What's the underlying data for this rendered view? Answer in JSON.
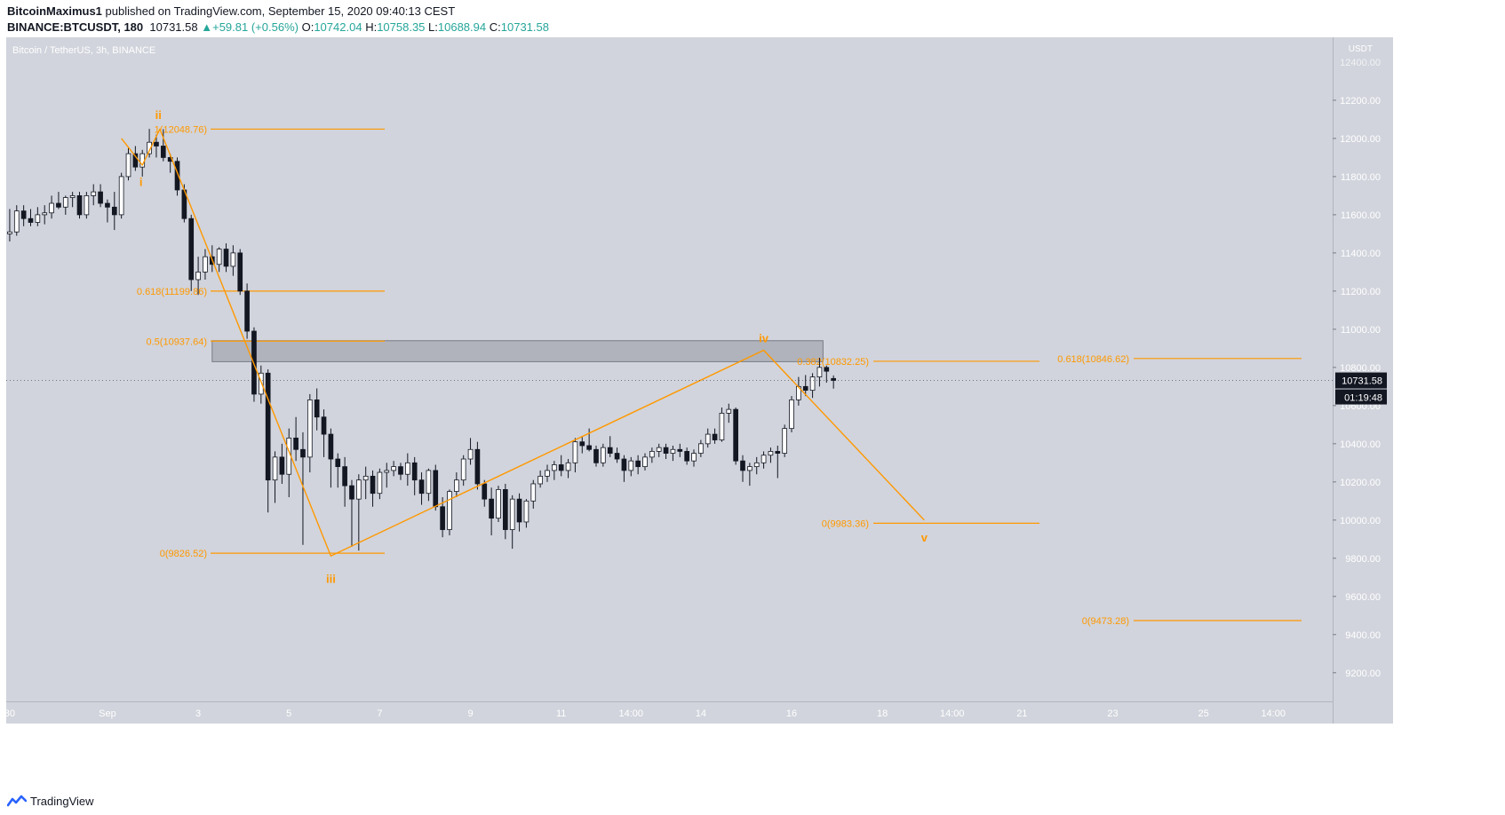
{
  "header": {
    "author": "BitcoinMaximus1",
    "published_text": " published on TradingView.com, September 15, 2020 09:40:13 CEST",
    "symbol_line": "BINANCE:BTCUSDT, 180",
    "last": "10731.58",
    "change": "+59.81 (+0.56%)",
    "o_label": "O:",
    "o": "10742.04",
    "h_label": "H:",
    "h": "10758.35",
    "l_label": "L:",
    "l": "10688.94",
    "c_label": "C:",
    "c": "10731.58"
  },
  "footer": {
    "brand": "TradingView",
    "icon": "tradingview-logo-icon"
  },
  "colors": {
    "chart_bg": "#d1d4dc",
    "orange": "#ff9800",
    "up": "#ffffff",
    "down": "#131722",
    "zone": "#9598a1",
    "price_tag": "#131722"
  },
  "chart_data": {
    "type": "candlestick",
    "title": "Bitcoin / TetherUS, 3h, BINANCE",
    "currency": "USDT",
    "ylim": [
      9050,
      12530
    ],
    "y_ticks": [
      9200,
      9400,
      9600,
      9800,
      10000,
      10200,
      10400,
      10600,
      10800,
      11000,
      11200,
      11400,
      11600,
      11800,
      12000,
      12200
    ],
    "y_tick_labels": [
      "9200.00",
      "9400.00",
      "9600.00",
      "9800.00",
      "10000.00",
      "10200.00",
      "10400.00",
      "10600.00",
      "10800.00",
      "11000.00",
      "11200.00",
      "11400.00",
      "11600.00",
      "11800.00",
      "12000.00",
      "12200.00"
    ],
    "top_partial_label": "12400.00",
    "bar_range": [
      0,
      190
    ],
    "x_ticks": [
      {
        "bar": 0.5,
        "label": "30"
      },
      {
        "bar": 14.5,
        "label": "Sep"
      },
      {
        "bar": 27.5,
        "label": "3"
      },
      {
        "bar": 40.5,
        "label": "5"
      },
      {
        "bar": 53.5,
        "label": "7"
      },
      {
        "bar": 66.5,
        "label": "9"
      },
      {
        "bar": 79.5,
        "label": "11"
      },
      {
        "bar": 89.5,
        "label": "14:00"
      },
      {
        "bar": 99.5,
        "label": "14"
      },
      {
        "bar": 112.5,
        "label": "16"
      },
      {
        "bar": 125.5,
        "label": "18"
      },
      {
        "bar": 135.5,
        "label": "14:00"
      },
      {
        "bar": 145.5,
        "label": "21"
      },
      {
        "bar": 158.5,
        "label": "23"
      },
      {
        "bar": 171.5,
        "label": "25"
      },
      {
        "bar": 181.5,
        "label": "14:00"
      }
    ],
    "last_price": "10731.58",
    "countdown": "01:19:48",
    "candles": [
      [
        11500,
        11630,
        11460,
        11510
      ],
      [
        11510,
        11650,
        11490,
        11620
      ],
      [
        11620,
        11650,
        11540,
        11580
      ],
      [
        11580,
        11630,
        11540,
        11560
      ],
      [
        11560,
        11640,
        11540,
        11600
      ],
      [
        11600,
        11650,
        11550,
        11610
      ],
      [
        11610,
        11700,
        11580,
        11660
      ],
      [
        11660,
        11720,
        11630,
        11640
      ],
      [
        11640,
        11700,
        11600,
        11690
      ],
      [
        11690,
        11720,
        11640,
        11700
      ],
      [
        11700,
        11720,
        11580,
        11600
      ],
      [
        11600,
        11720,
        11580,
        11700
      ],
      [
        11700,
        11760,
        11650,
        11720
      ],
      [
        11720,
        11760,
        11640,
        11660
      ],
      [
        11660,
        11680,
        11560,
        11640
      ],
      [
        11640,
        11720,
        11520,
        11600
      ],
      [
        11600,
        11820,
        11580,
        11800
      ],
      [
        11800,
        11950,
        11780,
        11920
      ],
      [
        11920,
        11960,
        11830,
        11850
      ],
      [
        11850,
        11940,
        11800,
        11920
      ],
      [
        11920,
        12050,
        11900,
        11980
      ],
      [
        11980,
        12020,
        11900,
        11960
      ],
      [
        11960,
        12049,
        11880,
        11900
      ],
      [
        11900,
        11920,
        11820,
        11880
      ],
      [
        11880,
        11900,
        11700,
        11730
      ],
      [
        11730,
        11760,
        11560,
        11580
      ],
      [
        11580,
        11600,
        11200,
        11260
      ],
      [
        11260,
        11380,
        11180,
        11300
      ],
      [
        11300,
        11420,
        11260,
        11380
      ],
      [
        11380,
        11440,
        11300,
        11340
      ],
      [
        11340,
        11430,
        11300,
        11420
      ],
      [
        11420,
        11450,
        11300,
        11330
      ],
      [
        11330,
        11440,
        11280,
        11400
      ],
      [
        11400,
        11420,
        11180,
        11200
      ],
      [
        11200,
        11240,
        10950,
        10990
      ],
      [
        10990,
        11010,
        10620,
        10660
      ],
      [
        10660,
        10810,
        10610,
        10770
      ],
      [
        10770,
        10790,
        10040,
        10210
      ],
      [
        10210,
        10360,
        10090,
        10330
      ],
      [
        10330,
        10400,
        10190,
        10240
      ],
      [
        10240,
        10480,
        10120,
        10430
      ],
      [
        10430,
        10540,
        10310,
        10370
      ],
      [
        10370,
        10460,
        9870,
        10330
      ],
      [
        10330,
        10660,
        10250,
        10630
      ],
      [
        10630,
        10690,
        10470,
        10540
      ],
      [
        10540,
        10580,
        10330,
        10450
      ],
      [
        10450,
        10480,
        10170,
        10320
      ],
      [
        10320,
        10350,
        10170,
        10280
      ],
      [
        10280,
        10330,
        10070,
        10180
      ],
      [
        10180,
        10210,
        9860,
        10110
      ],
      [
        10110,
        10240,
        9840,
        10210
      ],
      [
        10210,
        10280,
        10110,
        10230
      ],
      [
        10230,
        10260,
        10070,
        10140
      ],
      [
        10140,
        10270,
        10110,
        10250
      ],
      [
        10250,
        10300,
        10170,
        10260
      ],
      [
        10260,
        10310,
        10230,
        10280
      ],
      [
        10280,
        10300,
        10210,
        10240
      ],
      [
        10240,
        10350,
        10180,
        10300
      ],
      [
        10300,
        10330,
        10130,
        10210
      ],
      [
        10210,
        10250,
        10080,
        10140
      ],
      [
        10140,
        10270,
        10100,
        10260
      ],
      [
        10260,
        10290,
        10050,
        10070
      ],
      [
        10070,
        10120,
        9910,
        9950
      ],
      [
        9950,
        10160,
        9920,
        10150
      ],
      [
        10150,
        10250,
        10120,
        10210
      ],
      [
        10210,
        10340,
        10180,
        10320
      ],
      [
        10320,
        10430,
        10290,
        10370
      ],
      [
        10370,
        10410,
        10160,
        10190
      ],
      [
        10190,
        10210,
        10070,
        10110
      ],
      [
        10110,
        10170,
        9920,
        10010
      ],
      [
        10010,
        10180,
        9990,
        10160
      ],
      [
        10160,
        10190,
        9900,
        9950
      ],
      [
        9950,
        10130,
        9850,
        10110
      ],
      [
        10110,
        10140,
        9940,
        9990
      ],
      [
        9990,
        10110,
        9960,
        10100
      ],
      [
        10100,
        10210,
        10060,
        10190
      ],
      [
        10190,
        10260,
        10170,
        10230
      ],
      [
        10230,
        10290,
        10200,
        10260
      ],
      [
        10260,
        10310,
        10210,
        10290
      ],
      [
        10290,
        10340,
        10230,
        10260
      ],
      [
        10260,
        10320,
        10220,
        10300
      ],
      [
        10300,
        10430,
        10250,
        10410
      ],
      [
        10410,
        10440,
        10350,
        10390
      ],
      [
        10390,
        10480,
        10360,
        10370
      ],
      [
        10370,
        10390,
        10280,
        10300
      ],
      [
        10300,
        10400,
        10280,
        10380
      ],
      [
        10380,
        10440,
        10330,
        10350
      ],
      [
        10350,
        10380,
        10300,
        10320
      ],
      [
        10320,
        10340,
        10200,
        10260
      ],
      [
        10260,
        10330,
        10230,
        10310
      ],
      [
        10310,
        10340,
        10240,
        10280
      ],
      [
        10280,
        10350,
        10260,
        10330
      ],
      [
        10330,
        10380,
        10300,
        10360
      ],
      [
        10360,
        10400,
        10330,
        10380
      ],
      [
        10380,
        10400,
        10320,
        10350
      ],
      [
        10350,
        10390,
        10310,
        10370
      ],
      [
        10370,
        10400,
        10330,
        10360
      ],
      [
        10360,
        10380,
        10290,
        10310
      ],
      [
        10310,
        10370,
        10280,
        10350
      ],
      [
        10350,
        10420,
        10330,
        10400
      ],
      [
        10400,
        10480,
        10380,
        10450
      ],
      [
        10450,
        10480,
        10400,
        10420
      ],
      [
        10420,
        10590,
        10410,
        10560
      ],
      [
        10560,
        10610,
        10510,
        10580
      ],
      [
        10580,
        10590,
        10290,
        10310
      ],
      [
        10310,
        10340,
        10200,
        10260
      ],
      [
        10260,
        10300,
        10180,
        10280
      ],
      [
        10280,
        10330,
        10240,
        10300
      ],
      [
        10300,
        10360,
        10270,
        10340
      ],
      [
        10340,
        10380,
        10300,
        10360
      ],
      [
        10360,
        10390,
        10220,
        10350
      ],
      [
        10350,
        10500,
        10330,
        10480
      ],
      [
        10480,
        10650,
        10460,
        10630
      ],
      [
        10630,
        10750,
        10600,
        10700
      ],
      [
        10700,
        10760,
        10650,
        10680
      ],
      [
        10680,
        10770,
        10640,
        10750
      ],
      [
        10750,
        10850,
        10700,
        10800
      ],
      [
        10800,
        10810,
        10720,
        10780
      ],
      [
        10742,
        10758,
        10689,
        10732
      ]
    ],
    "fib_left": [
      {
        "label": "1(12048.76)",
        "price": 12048.76
      },
      {
        "label": "0.618(11199.86)",
        "price": 11199.86
      },
      {
        "label": "0.5(10937.64)",
        "price": 10937.64
      },
      {
        "label": "0(9826.52)",
        "price": 9826.52
      }
    ],
    "fib_mid": [
      {
        "label": "0.382(10832.25)",
        "price": 10832.25
      },
      {
        "label": "0(9983.36)",
        "price": 9983.36
      }
    ],
    "fib_right": [
      {
        "label": "0.618(10846.62)",
        "price": 10846.62
      },
      {
        "label": "0(9473.28)",
        "price": 9473.28
      }
    ],
    "zone": {
      "from_bar": 29.5,
      "to_bar": 117,
      "low": 10830,
      "high": 10940
    },
    "wave_path": [
      {
        "bar": 16.5,
        "price": 12000
      },
      {
        "bar": 19.5,
        "price": 11860
      },
      {
        "bar": 22,
        "price": 12049
      },
      {
        "bar": 46.5,
        "price": 9812
      },
      {
        "bar": 108.5,
        "price": 10890
      },
      {
        "bar": 131.5,
        "price": 10000
      }
    ],
    "wave_labels": [
      {
        "text": "i",
        "bar": 19.3,
        "price": 11770
      },
      {
        "text": "ii",
        "bar": 21.8,
        "price": 12120
      },
      {
        "text": "iii",
        "bar": 46.5,
        "price": 9690
      },
      {
        "text": "iv",
        "bar": 108.5,
        "price": 10950
      },
      {
        "text": "v",
        "bar": 131.5,
        "price": 9905
      }
    ]
  }
}
